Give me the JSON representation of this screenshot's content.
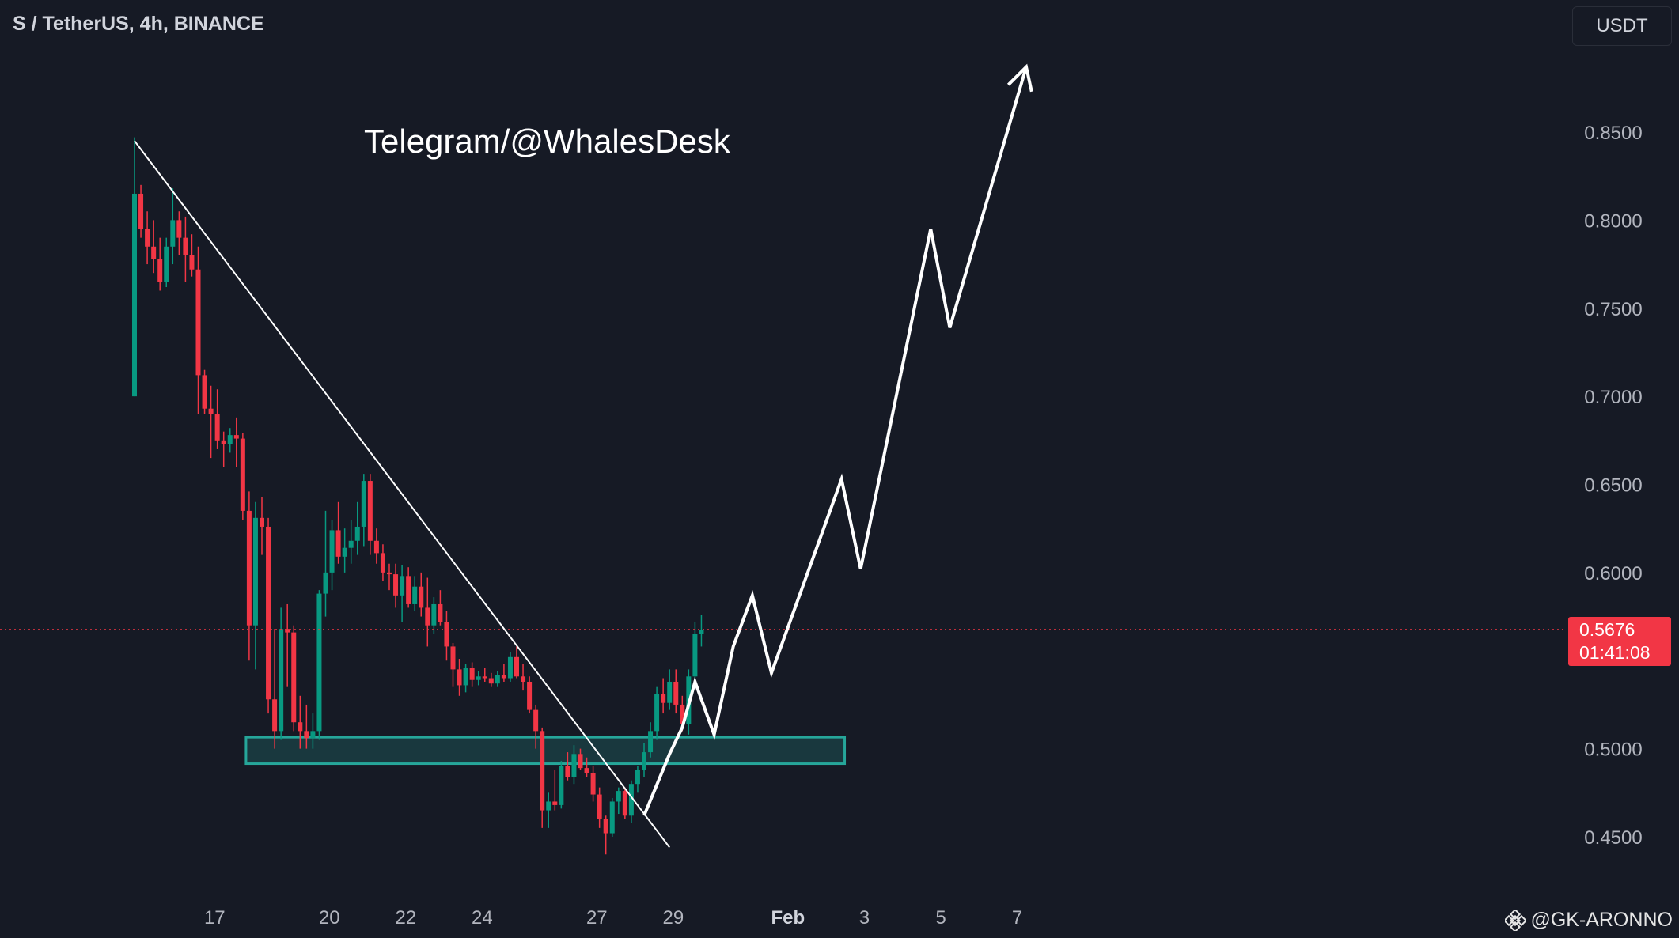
{
  "header": {
    "title": "S / TetherUS, 4h, BINANCE",
    "currency_button": "USDT"
  },
  "annotation": {
    "text": "Telegram/@WhalesDesk"
  },
  "current_price": {
    "value": "0.5676",
    "countdown": "01:41:08",
    "level": 0.5676
  },
  "watermark": {
    "text": "@GK-ARONNO",
    "icon": "binance-icon"
  },
  "colors": {
    "background": "#161a25",
    "up": "#089981",
    "down": "#f23645",
    "zone": "#26a69a",
    "line": "#ffffff",
    "text": "#b2b5be"
  },
  "chart_data": {
    "type": "candlestick",
    "symbol": "S / TetherUS",
    "timeframe": "4h",
    "exchange": "BINANCE",
    "y_axis": {
      "ticks": [
        "0.8500",
        "0.8000",
        "0.7500",
        "0.7000",
        "0.6500",
        "0.6000",
        "0.5000",
        "0.4500"
      ],
      "tick_values": [
        0.85,
        0.8,
        0.75,
        0.7,
        0.65,
        0.6,
        0.5,
        0.45
      ],
      "range": [
        0.42,
        0.9
      ]
    },
    "x_axis": {
      "labels": [
        "17",
        "20",
        "22",
        "24",
        "27",
        "29",
        "Feb",
        "3",
        "5",
        "7"
      ],
      "bar_index": [
        6,
        24,
        36,
        48,
        66,
        78,
        96,
        108,
        120,
        132
      ]
    },
    "candles": [
      [
        0.7,
        0.847,
        0.7,
        0.815
      ],
      [
        0.815,
        0.82,
        0.79,
        0.795
      ],
      [
        0.795,
        0.805,
        0.775,
        0.785
      ],
      [
        0.785,
        0.8,
        0.77,
        0.778
      ],
      [
        0.778,
        0.79,
        0.76,
        0.765
      ],
      [
        0.765,
        0.79,
        0.762,
        0.785
      ],
      [
        0.785,
        0.818,
        0.775,
        0.8
      ],
      [
        0.8,
        0.805,
        0.78,
        0.79
      ],
      [
        0.79,
        0.802,
        0.765,
        0.78
      ],
      [
        0.78,
        0.792,
        0.768,
        0.772
      ],
      [
        0.772,
        0.785,
        0.69,
        0.712
      ],
      [
        0.712,
        0.715,
        0.69,
        0.693
      ],
      [
        0.693,
        0.706,
        0.665,
        0.69
      ],
      [
        0.69,
        0.704,
        0.67,
        0.675
      ],
      [
        0.675,
        0.68,
        0.66,
        0.673
      ],
      [
        0.673,
        0.682,
        0.668,
        0.678
      ],
      [
        0.678,
        0.688,
        0.66,
        0.676
      ],
      [
        0.676,
        0.679,
        0.63,
        0.635
      ],
      [
        0.635,
        0.646,
        0.55,
        0.57
      ],
      [
        0.57,
        0.64,
        0.545,
        0.631
      ],
      [
        0.631,
        0.643,
        0.61,
        0.626
      ],
      [
        0.626,
        0.631,
        0.52,
        0.528
      ],
      [
        0.528,
        0.568,
        0.5,
        0.51
      ],
      [
        0.51,
        0.58,
        0.505,
        0.568
      ],
      [
        0.568,
        0.582,
        0.535,
        0.566
      ],
      [
        0.566,
        0.57,
        0.51,
        0.515
      ],
      [
        0.515,
        0.53,
        0.5,
        0.51
      ],
      [
        0.51,
        0.525,
        0.5,
        0.506
      ],
      [
        0.506,
        0.52,
        0.5,
        0.51
      ],
      [
        0.51,
        0.59,
        0.505,
        0.588
      ],
      [
        0.588,
        0.635,
        0.575,
        0.6
      ],
      [
        0.6,
        0.63,
        0.59,
        0.624
      ],
      [
        0.624,
        0.64,
        0.605,
        0.609
      ],
      [
        0.609,
        0.625,
        0.6,
        0.614
      ],
      [
        0.614,
        0.63,
        0.605,
        0.618
      ],
      [
        0.618,
        0.64,
        0.61,
        0.626
      ],
      [
        0.626,
        0.656,
        0.615,
        0.652
      ],
      [
        0.652,
        0.656,
        0.61,
        0.618
      ],
      [
        0.618,
        0.625,
        0.605,
        0.611
      ],
      [
        0.611,
        0.616,
        0.595,
        0.6
      ],
      [
        0.6,
        0.605,
        0.59,
        0.599
      ],
      [
        0.599,
        0.605,
        0.58,
        0.587
      ],
      [
        0.587,
        0.604,
        0.572,
        0.598
      ],
      [
        0.598,
        0.603,
        0.58,
        0.582
      ],
      [
        0.582,
        0.598,
        0.578,
        0.592
      ],
      [
        0.592,
        0.6,
        0.575,
        0.58
      ],
      [
        0.58,
        0.597,
        0.558,
        0.57
      ],
      [
        0.57,
        0.586,
        0.565,
        0.582
      ],
      [
        0.582,
        0.59,
        0.57,
        0.572
      ],
      [
        0.572,
        0.578,
        0.55,
        0.558
      ],
      [
        0.558,
        0.56,
        0.535,
        0.545
      ],
      [
        0.545,
        0.551,
        0.53,
        0.536
      ],
      [
        0.536,
        0.548,
        0.532,
        0.546
      ],
      [
        0.546,
        0.549,
        0.535,
        0.539
      ],
      [
        0.539,
        0.544,
        0.536,
        0.541
      ],
      [
        0.541,
        0.546,
        0.538,
        0.54
      ],
      [
        0.54,
        0.543,
        0.535,
        0.537
      ],
      [
        0.537,
        0.544,
        0.535,
        0.542
      ],
      [
        0.542,
        0.548,
        0.538,
        0.54
      ],
      [
        0.54,
        0.555,
        0.538,
        0.552
      ],
      [
        0.552,
        0.558,
        0.54,
        0.541
      ],
      [
        0.541,
        0.548,
        0.533,
        0.538
      ],
      [
        0.538,
        0.541,
        0.52,
        0.522
      ],
      [
        0.522,
        0.525,
        0.5,
        0.51
      ],
      [
        0.51,
        0.512,
        0.455,
        0.465
      ],
      [
        0.465,
        0.475,
        0.455,
        0.47
      ],
      [
        0.47,
        0.488,
        0.465,
        0.468
      ],
      [
        0.468,
        0.493,
        0.466,
        0.49
      ],
      [
        0.49,
        0.498,
        0.482,
        0.484
      ],
      [
        0.484,
        0.502,
        0.48,
        0.497
      ],
      [
        0.497,
        0.5,
        0.488,
        0.489
      ],
      [
        0.489,
        0.495,
        0.484,
        0.486
      ],
      [
        0.486,
        0.49,
        0.47,
        0.474
      ],
      [
        0.474,
        0.478,
        0.455,
        0.46
      ],
      [
        0.46,
        0.462,
        0.44,
        0.452
      ],
      [
        0.452,
        0.472,
        0.45,
        0.47
      ],
      [
        0.47,
        0.478,
        0.463,
        0.476
      ],
      [
        0.476,
        0.478,
        0.46,
        0.462
      ],
      [
        0.462,
        0.482,
        0.458,
        0.48
      ],
      [
        0.48,
        0.49,
        0.475,
        0.488
      ],
      [
        0.488,
        0.503,
        0.484,
        0.498
      ],
      [
        0.498,
        0.515,
        0.495,
        0.51
      ],
      [
        0.51,
        0.535,
        0.505,
        0.531
      ],
      [
        0.531,
        0.54,
        0.52,
        0.526
      ],
      [
        0.526,
        0.545,
        0.522,
        0.538
      ],
      [
        0.538,
        0.545,
        0.52,
        0.525
      ],
      [
        0.525,
        0.53,
        0.51,
        0.514
      ],
      [
        0.514,
        0.545,
        0.508,
        0.541
      ],
      [
        0.541,
        0.572,
        0.538,
        0.565
      ],
      [
        0.565,
        0.576,
        0.558,
        0.5676
      ]
    ],
    "lines": [
      {
        "name": "descending-trendline",
        "points": [
          [
            0,
            0.845
          ],
          [
            84,
            0.444
          ]
        ]
      },
      {
        "name": "projection-path",
        "points": [
          [
            80,
            0.462
          ],
          [
            84,
            0.497
          ],
          [
            86,
            0.512
          ],
          [
            88,
            0.538
          ],
          [
            91,
            0.508
          ],
          [
            94,
            0.558
          ],
          [
            97,
            0.587
          ],
          [
            100,
            0.543
          ],
          [
            111,
            0.653
          ],
          [
            114,
            0.602
          ],
          [
            125,
            0.795
          ],
          [
            128,
            0.739
          ],
          [
            140,
            0.887
          ]
        ]
      }
    ],
    "zones": [
      {
        "name": "demand-zone",
        "x_range": [
          18,
          111
        ],
        "y_range": [
          0.4915,
          0.5065
        ]
      }
    ]
  }
}
